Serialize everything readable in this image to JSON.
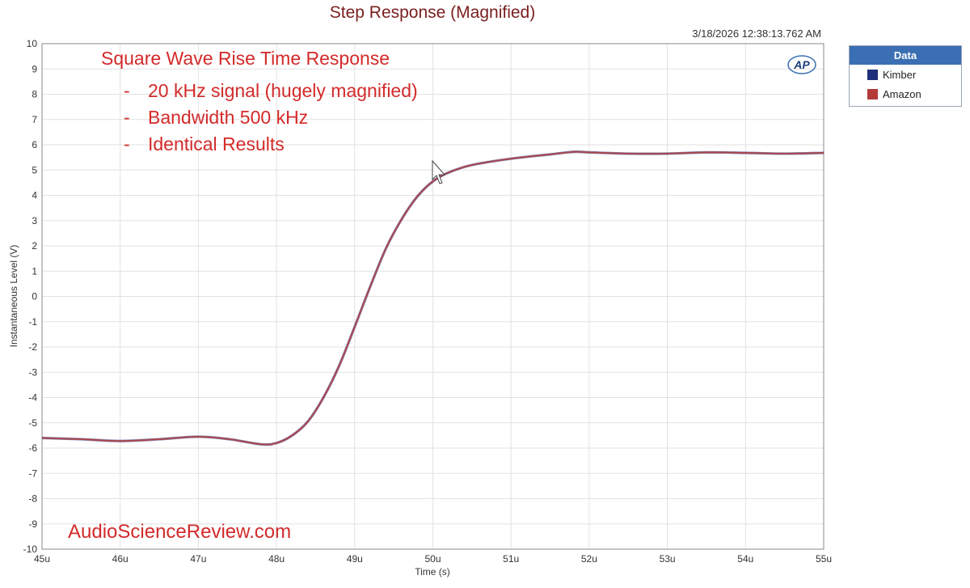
{
  "header": {
    "title": "Step Response (Magnified)",
    "timestamp": "3/18/2026 12:38:13.762 AM",
    "ap_logo": "AP"
  },
  "legend": {
    "title": "Data",
    "items": [
      {
        "label": "Kimber",
        "color": "#1f2f7a"
      },
      {
        "label": "Amazon",
        "color": "#b23a3a"
      }
    ]
  },
  "annotations": {
    "heading": "Square Wave Rise Time Response",
    "bullets": [
      "20 kHz signal (hugely magnified)",
      "Bandwidth 500 kHz",
      "Identical Results"
    ],
    "bullet_marker": "-",
    "watermark": "AudioScienceReview.com",
    "color": "#d42a2a"
  },
  "chart_data": {
    "type": "line",
    "title": "Step Response (Magnified)",
    "xlabel": "Time (s)",
    "ylabel": "Instantaneous Level (V)",
    "xlim": [
      45,
      55
    ],
    "ylim": [
      -10,
      10
    ],
    "x_unit_suffix": "u",
    "x_ticks": [
      45,
      46,
      47,
      48,
      49,
      50,
      51,
      52,
      53,
      54,
      55
    ],
    "y_ticks": [
      -10,
      -9,
      -8,
      -7,
      -6,
      -5,
      -4,
      -3,
      -2,
      -1,
      0,
      1,
      2,
      3,
      4,
      5,
      6,
      7,
      8,
      9,
      10
    ],
    "x_tick_labels": [
      "45u",
      "46u",
      "47u",
      "48u",
      "49u",
      "50u",
      "51u",
      "52u",
      "53u",
      "54u",
      "55u"
    ],
    "grid": true,
    "legend_position": "right",
    "series": [
      {
        "name": "Kimber",
        "color": "#1f2f7a",
        "x": [
          45,
          45.5,
          46,
          46.5,
          47,
          47.4,
          47.8,
          48.0,
          48.2,
          48.4,
          48.6,
          48.8,
          49.0,
          49.2,
          49.4,
          49.6,
          49.8,
          50.0,
          50.2,
          50.5,
          51.0,
          51.5,
          51.8,
          52.0,
          52.5,
          53.0,
          53.5,
          54.0,
          54.5,
          55.0
        ],
        "values": [
          -5.6,
          -5.65,
          -5.72,
          -5.65,
          -5.55,
          -5.65,
          -5.85,
          -5.8,
          -5.5,
          -4.95,
          -4.0,
          -2.75,
          -1.2,
          0.4,
          1.9,
          3.05,
          3.95,
          4.55,
          4.9,
          5.2,
          5.45,
          5.62,
          5.72,
          5.7,
          5.65,
          5.65,
          5.7,
          5.68,
          5.65,
          5.68
        ]
      },
      {
        "name": "Amazon",
        "color": "#b23a3a",
        "x": [
          45,
          45.5,
          46,
          46.5,
          47,
          47.4,
          47.8,
          48.0,
          48.2,
          48.4,
          48.6,
          48.8,
          49.0,
          49.2,
          49.4,
          49.6,
          49.8,
          50.0,
          50.2,
          50.5,
          51.0,
          51.5,
          51.8,
          52.0,
          52.5,
          53.0,
          53.5,
          54.0,
          54.5,
          55.0
        ],
        "values": [
          -5.6,
          -5.65,
          -5.72,
          -5.65,
          -5.55,
          -5.65,
          -5.85,
          -5.8,
          -5.5,
          -4.95,
          -4.0,
          -2.75,
          -1.2,
          0.4,
          1.9,
          3.05,
          3.95,
          4.55,
          4.9,
          5.2,
          5.45,
          5.62,
          5.72,
          5.7,
          5.65,
          5.65,
          5.7,
          5.68,
          5.65,
          5.68
        ]
      }
    ]
  }
}
